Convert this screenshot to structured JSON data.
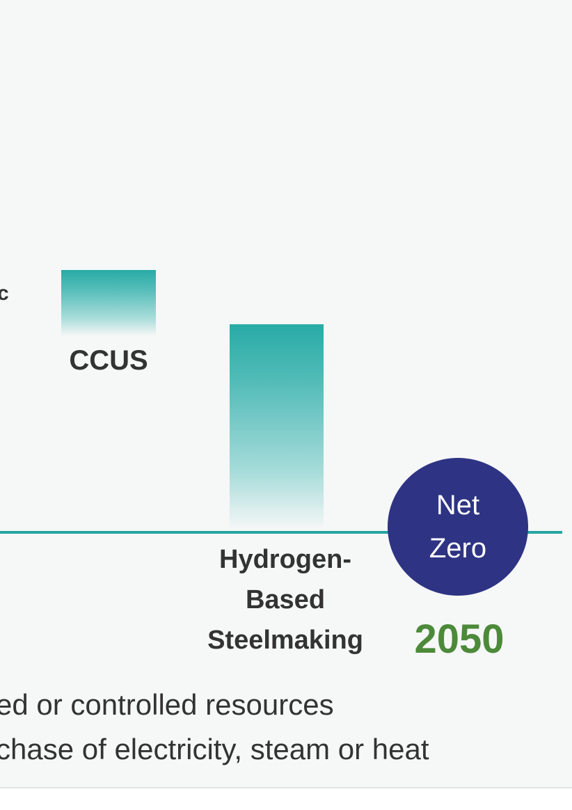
{
  "chart_data": {
    "type": "bar",
    "title": "",
    "xlabel": "",
    "ylabel": "",
    "grid": false,
    "legend": "none",
    "categories": [
      "CCUS",
      "Hydrogen-Based Steelmaking"
    ],
    "values": [
      0.25,
      0.78
    ],
    "ylim": [
      0,
      1
    ],
    "partial_label_left": "c",
    "bar_color": "#28aba6",
    "baseline_color": "#27a6a2",
    "endpoint": {
      "badge_line1": "Net",
      "badge_line2": "Zero",
      "badge_color": "#2e3483",
      "year": "2050",
      "year_color": "#4c8a3a"
    },
    "labels": {
      "ccus": "CCUS",
      "h2_line1": "Hydrogen-",
      "h2_line2": "Based",
      "h2_line3": "Steelmaking"
    }
  },
  "footnotes": [
    "ed  or controlled  resources",
    "chase of electricity, steam or heat"
  ]
}
